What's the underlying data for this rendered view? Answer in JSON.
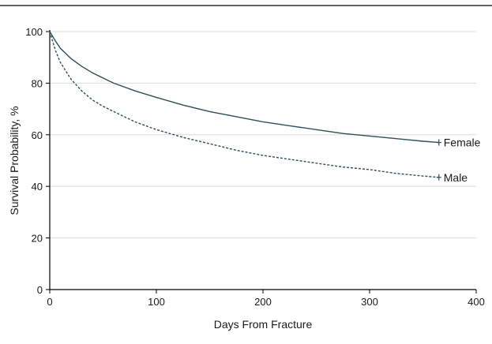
{
  "chart_data": {
    "type": "line",
    "title": "",
    "xlabel": "Days From Fracture",
    "ylabel": "Survival Probability, %",
    "xlim": [
      0,
      400
    ],
    "ylim": [
      0,
      100
    ],
    "xticks": [
      0,
      100,
      200,
      300,
      400
    ],
    "yticks": [
      0,
      20,
      40,
      60,
      80,
      100
    ],
    "grid": "horizontal",
    "legend": "inline labels at line ends",
    "series": [
      {
        "name": "Female",
        "style": "solid",
        "color": "#2f4f5a",
        "x": [
          0,
          5,
          10,
          20,
          30,
          40,
          50,
          60,
          80,
          100,
          125,
          150,
          175,
          200,
          225,
          250,
          275,
          300,
          325,
          350,
          365
        ],
        "y": [
          100,
          96.5,
          93.5,
          89.5,
          86.5,
          84,
          82,
          80,
          77,
          74.5,
          71.5,
          69,
          67,
          65,
          63.5,
          62,
          60.5,
          59.5,
          58.5,
          57.5,
          57
        ]
      },
      {
        "name": "Male",
        "style": "dashed",
        "color": "#2f4f5a",
        "x": [
          0,
          5,
          10,
          20,
          30,
          40,
          50,
          60,
          80,
          100,
          125,
          150,
          175,
          200,
          225,
          250,
          275,
          300,
          325,
          350,
          365
        ],
        "y": [
          100,
          93,
          88,
          81.5,
          77,
          73.5,
          71,
          69,
          65,
          62,
          59,
          56.5,
          54,
          52,
          50.5,
          49,
          47.5,
          46.5,
          45,
          44,
          43.5
        ]
      }
    ]
  }
}
